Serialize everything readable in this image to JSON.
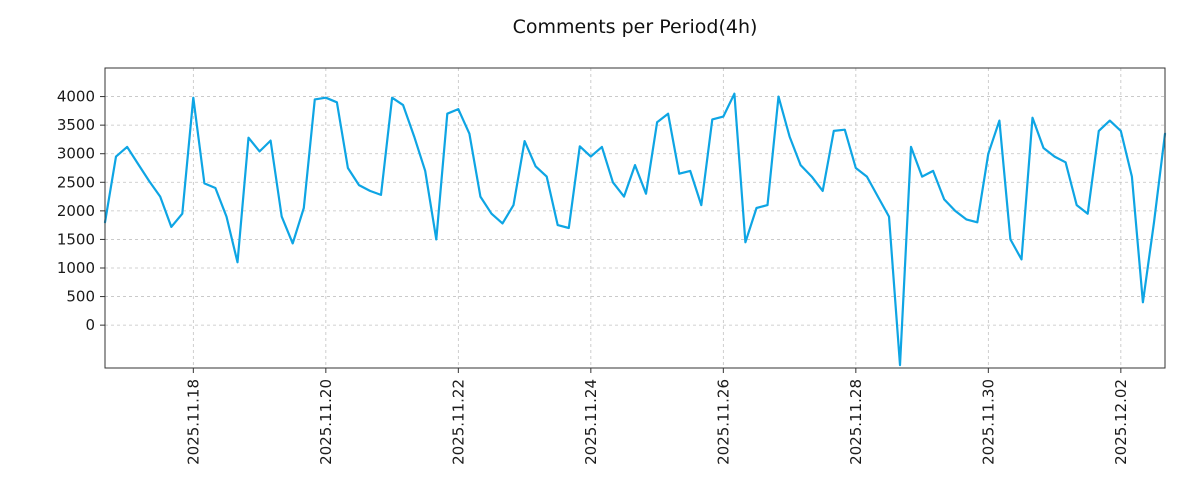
{
  "title": "Comments per Period(4h)",
  "chart_data": {
    "type": "line",
    "title": "Comments per Period(4h)",
    "xlabel": "",
    "ylabel": "",
    "grid": true,
    "legend": "none",
    "line_color": "#0ea5e4",
    "x_tick_labels": [
      "2025.11.18",
      "2025.11.20",
      "2025.11.22",
      "2025.11.24",
      "2025.11.26",
      "2025.11.28",
      "2025.11.30",
      "2025.12.02"
    ],
    "x_tick_indices": [
      8,
      20,
      32,
      44,
      56,
      68,
      80,
      92
    ],
    "x_period_hours": 4,
    "yticks": [
      0,
      500,
      1000,
      1500,
      2000,
      2500,
      3000,
      3500,
      4000
    ],
    "ylim": [
      -750,
      4500
    ],
    "xlim": [
      0,
      96
    ],
    "values": [
      1800,
      2950,
      3120,
      2820,
      2520,
      2250,
      1720,
      1950,
      3980,
      2480,
      2400,
      1900,
      1100,
      3280,
      3040,
      3230,
      1900,
      1430,
      2050,
      3950,
      3980,
      3900,
      2750,
      2450,
      2350,
      2280,
      3980,
      3850,
      3300,
      2700,
      1500,
      3700,
      3780,
      3350,
      2250,
      1950,
      1780,
      2100,
      3220,
      2780,
      2600,
      1750,
      1700,
      3130,
      2950,
      3120,
      2500,
      2250,
      2800,
      2300,
      3550,
      3700,
      2650,
      2700,
      2100,
      3600,
      3650,
      4050,
      1450,
      2050,
      2100,
      4000,
      3300,
      2800,
      2600,
      2350,
      3400,
      3420,
      2750,
      2600,
      2250,
      1900,
      -700,
      3120,
      2600,
      2700,
      2200,
      2000,
      1850,
      1800,
      3000,
      3580,
      1500,
      1150,
      3630,
      3100,
      2950,
      2850,
      2100,
      1950,
      3400,
      3580,
      3400,
      2600,
      400,
      1800,
      3350
    ]
  }
}
